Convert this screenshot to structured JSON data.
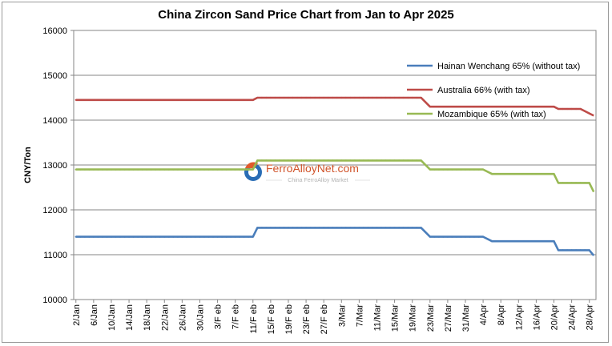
{
  "chart_data": {
    "type": "line",
    "title": "China Zircon Sand Price Chart from Jan to Apr 2025",
    "ylabel": "CNY/Ton",
    "ylim": [
      10000,
      16000
    ],
    "yticks": [
      "10000",
      "11000",
      "12000",
      "13000",
      "14000",
      "15000",
      "16000"
    ],
    "ytick_values": [
      10000,
      11000,
      12000,
      13000,
      14000,
      15000,
      16000
    ],
    "grid": "horizontal",
    "legend_position": "top-right",
    "xtick_labels": [
      "2/Jan",
      "6/Jan",
      "10/Jan",
      "14/Jan",
      "18/Jan",
      "22/Jan",
      "26/Jan",
      "30/Jan",
      "3/F eb",
      "7/F eb",
      "11/F eb",
      "15/F eb",
      "19/F eb",
      "23/F eb",
      "27/F eb",
      "3/Mar",
      "7/Mar",
      "11/Mar",
      "15/Mar",
      "19/Mar",
      "23/Mar",
      "27/Mar",
      "31/Mar",
      "4/Apr",
      "8/Apr",
      "12/Apr",
      "16/Apr",
      "20/Apr",
      "24/Apr",
      "28/Apr"
    ],
    "xtick_index": [
      0,
      4,
      8,
      12,
      16,
      20,
      24,
      28,
      32,
      36,
      40,
      44,
      48,
      52,
      56,
      60,
      64,
      68,
      72,
      76,
      80,
      84,
      88,
      92,
      96,
      100,
      104,
      108,
      112,
      116
    ],
    "x_count": 118,
    "series": [
      {
        "name": "Hainan Wenchang 65% (without tax)",
        "color": "#4a7ebb",
        "segments": [
          [
            0,
            11400
          ],
          [
            40,
            11400
          ],
          [
            41,
            11600
          ],
          [
            78,
            11600
          ],
          [
            80,
            11400
          ],
          [
            92,
            11400
          ],
          [
            94,
            11300
          ],
          [
            108,
            11300
          ],
          [
            109,
            11100
          ],
          [
            116,
            11100
          ],
          [
            117,
            10980
          ]
        ]
      },
      {
        "name": "Australia 66% (with tax)",
        "color": "#be4b48",
        "segments": [
          [
            0,
            14450
          ],
          [
            40,
            14450
          ],
          [
            41,
            14500
          ],
          [
            78,
            14500
          ],
          [
            80,
            14300
          ],
          [
            108,
            14300
          ],
          [
            109,
            14250
          ],
          [
            114,
            14250
          ],
          [
            116,
            14150
          ],
          [
            117,
            14100
          ]
        ]
      },
      {
        "name": "Mozambique 65% (with tax)",
        "color": "#98b954",
        "segments": [
          [
            0,
            12900
          ],
          [
            40,
            12900
          ],
          [
            41,
            13100
          ],
          [
            78,
            13100
          ],
          [
            80,
            12900
          ],
          [
            92,
            12900
          ],
          [
            94,
            12800
          ],
          [
            108,
            12800
          ],
          [
            109,
            12600
          ],
          [
            116,
            12600
          ],
          [
            117,
            12400
          ]
        ]
      }
    ]
  },
  "watermark": {
    "brand": "FerroAlloyNet.com",
    "tagline": "China FerroAlloy Market"
  }
}
